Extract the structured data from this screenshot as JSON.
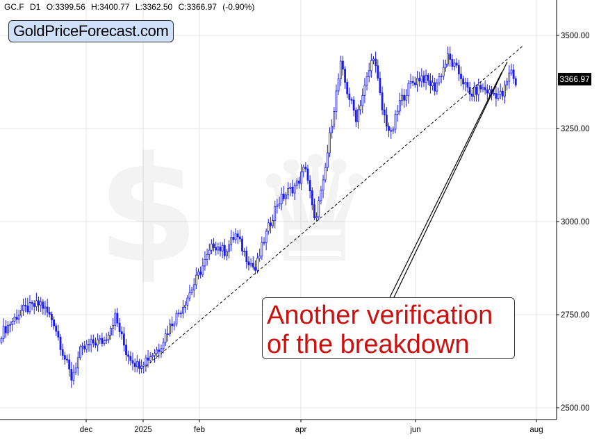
{
  "header": {
    "symbol": "GC.F",
    "timeframe": "D1",
    "open": "O:3399.56",
    "high": "H:3400.77",
    "low": "L:3362.50",
    "close": "C:3366.97",
    "change": "(-0.90%)"
  },
  "brand": "GoldPriceForecast.com",
  "annotation": {
    "line1": "Another verification",
    "line2": "of the breakdown"
  },
  "last_price_label": "3366.97",
  "colors": {
    "candle": "#1a1aee",
    "annotation_text": "#cc1010",
    "trendline": "#000000",
    "brand_bg": "#cfe0fb"
  },
  "chart_data": {
    "type": "candlestick",
    "y_ticks": [
      "3500.00",
      "3250.00",
      "3000.00",
      "2750.00",
      "2500.00"
    ],
    "y_tick_values": [
      3500,
      3250,
      3000,
      2750,
      2500
    ],
    "x_ticks": [
      "dec",
      "2025",
      "feb",
      "apr",
      "jun",
      "aug"
    ],
    "ylim": [
      2480,
      3590
    ],
    "grid": true,
    "trendline_points": [
      [
        2611,
        3471
      ]
    ],
    "last_close": 3366.97,
    "anchors": [
      [
        0,
        2700
      ],
      [
        9,
        2760
      ],
      [
        18,
        2780
      ],
      [
        24,
        2730
      ],
      [
        28,
        2650
      ],
      [
        32,
        2580
      ],
      [
        36,
        2650
      ],
      [
        42,
        2675
      ],
      [
        47,
        2680
      ],
      [
        52,
        2745
      ],
      [
        57,
        2650
      ],
      [
        62,
        2615
      ],
      [
        67,
        2635
      ],
      [
        72,
        2660
      ],
      [
        77,
        2720
      ],
      [
        82,
        2765
      ],
      [
        87,
        2820
      ],
      [
        92,
        2880
      ],
      [
        97,
        2940
      ],
      [
        102,
        2920
      ],
      [
        107,
        2965
      ],
      [
        112,
        2905
      ],
      [
        116,
        2870
      ],
      [
        120,
        2950
      ],
      [
        126,
        3050
      ],
      [
        131,
        3080
      ],
      [
        135,
        3100
      ],
      [
        139,
        3150
      ],
      [
        143,
        3000
      ],
      [
        147,
        3100
      ],
      [
        151,
        3270
      ],
      [
        155,
        3420
      ],
      [
        158,
        3350
      ],
      [
        162,
        3280
      ],
      [
        166,
        3360
      ],
      [
        170,
        3450
      ],
      [
        174,
        3300
      ],
      [
        178,
        3230
      ],
      [
        182,
        3320
      ],
      [
        187,
        3370
      ],
      [
        192,
        3390
      ],
      [
        198,
        3360
      ],
      [
        204,
        3440
      ],
      [
        210,
        3390
      ],
      [
        214,
        3340
      ],
      [
        219,
        3360
      ],
      [
        224,
        3345
      ],
      [
        229,
        3340
      ],
      [
        233,
        3410
      ],
      [
        235,
        3367
      ]
    ]
  }
}
